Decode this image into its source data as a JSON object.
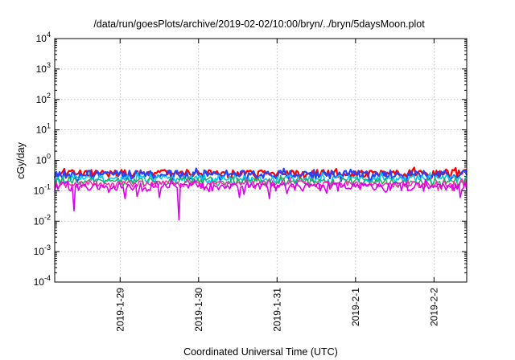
{
  "chart_data": {
    "type": "line",
    "title": "/data/run/goesPlots/archive/2019-02-02/10:00/bryn/../bryn/5daysMoon.plot",
    "xlabel": "Coordinated Universal Time (UTC)",
    "ylabel": "cGy/day",
    "yscale": "log",
    "ylim": [
      0.0001,
      10000
    ],
    "y_ticks": [
      {
        "value": 0.0001,
        "base": "10",
        "exp": "-4"
      },
      {
        "value": 0.001,
        "base": "10",
        "exp": "-3"
      },
      {
        "value": 0.01,
        "base": "10",
        "exp": "-2"
      },
      {
        "value": 0.1,
        "base": "10",
        "exp": "-1"
      },
      {
        "value": 1,
        "base": "10",
        "exp": "0"
      },
      {
        "value": 10,
        "base": "10",
        "exp": "1"
      },
      {
        "value": 100,
        "base": "10",
        "exp": "2"
      },
      {
        "value": 1000,
        "base": "10",
        "exp": "3"
      },
      {
        "value": 10000,
        "base": "10",
        "exp": "4"
      }
    ],
    "xlim": [
      "2019-01-28 04:00",
      "2019-02-02 10:00"
    ],
    "x_ticks": [
      {
        "value": "2019-01-29 00:00",
        "label": "2019-1-29"
      },
      {
        "value": "2019-01-30 00:00",
        "label": "2019-1-30"
      },
      {
        "value": "2019-01-31 00:00",
        "label": "2019-1-31"
      },
      {
        "value": "2019-02-01 00:00",
        "label": "2019-2-1"
      },
      {
        "value": "2019-02-02 00:00",
        "label": "2019-2-2"
      }
    ],
    "grid": true,
    "series": [
      {
        "color": "#ff0000",
        "base": 0.38,
        "noise": 0.12,
        "width": 2.2,
        "dips": []
      },
      {
        "color": "#2244ff",
        "base": 0.35,
        "noise": 0.12,
        "width": 2.2,
        "dips": []
      },
      {
        "color": "#00ccee",
        "base": 0.25,
        "noise": 0.08,
        "width": 1.6,
        "dips": []
      },
      {
        "color": "#22aa55",
        "base": 0.21,
        "noise": 0.06,
        "width": 1.4,
        "dips": []
      },
      {
        "color": "#ff22aa",
        "base": 0.17,
        "noise": 0.05,
        "width": 1.4,
        "dips": []
      },
      {
        "color": "#dd00ee",
        "base": 0.14,
        "noise": 0.05,
        "width": 1.6,
        "dips": [
          {
            "at": "2019-01-28 09:55",
            "value": 0.022
          },
          {
            "at": "2019-01-29 01:30",
            "value": 0.055
          },
          {
            "at": "2019-01-29 05:10",
            "value": 0.065
          },
          {
            "at": "2019-01-29 12:00",
            "value": 0.06
          },
          {
            "at": "2019-01-29 18:00",
            "value": 0.011
          },
          {
            "at": "2019-01-30 12:30",
            "value": 0.06
          },
          {
            "at": "2019-01-30 21:40",
            "value": 0.055
          },
          {
            "at": "2019-02-01 16:00",
            "value": 0.1
          },
          {
            "at": "2019-02-02 08:00",
            "value": 0.06
          }
        ]
      }
    ]
  }
}
